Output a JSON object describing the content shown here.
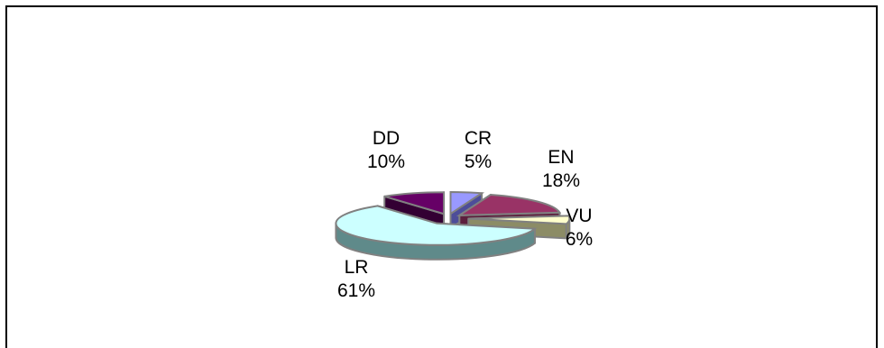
{
  "chart_data": {
    "type": "pie",
    "style": "exploded-3d",
    "categories": [
      "CR",
      "EN",
      "VU",
      "LR",
      "DD"
    ],
    "values": [
      5,
      18,
      6,
      61,
      10
    ],
    "labels": [
      {
        "name": "CR",
        "percent": "5%"
      },
      {
        "name": "EN",
        "percent": "18%"
      },
      {
        "name": "VU",
        "percent": "6%"
      },
      {
        "name": "LR",
        "percent": "61%"
      },
      {
        "name": "DD",
        "percent": "10%"
      }
    ],
    "colors": {
      "CR": {
        "top": "#9999ff",
        "side": "#4d4d99"
      },
      "EN": {
        "top": "#993366",
        "side": "#5c1f3d"
      },
      "VU": {
        "top": "#ffffcc",
        "side": "#8c8c66"
      },
      "LR": {
        "top": "#ccffff",
        "side": "#5f8a8a"
      },
      "DD": {
        "top": "#660066",
        "side": "#330033"
      }
    },
    "legend": "none"
  }
}
